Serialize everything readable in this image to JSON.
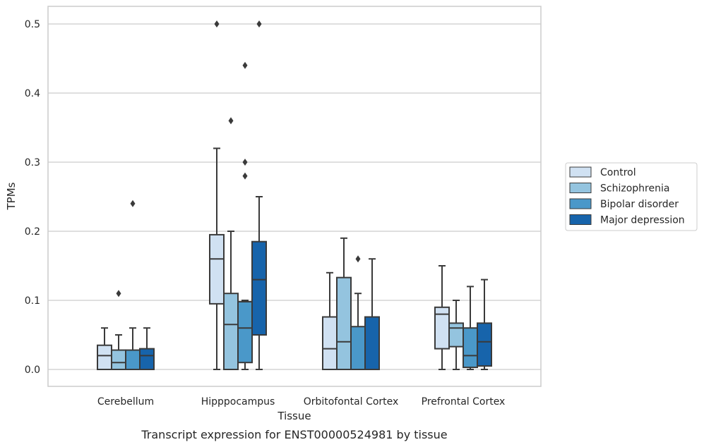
{
  "caption": "Transcript expression for ENST00000524981 by tissue",
  "chart_data": {
    "type": "box",
    "title": "",
    "xlabel": "Tissue",
    "ylabel": "TPMs",
    "ylim": [
      -0.024,
      0.526
    ],
    "yticks": [
      0.0,
      0.1,
      0.2,
      0.3,
      0.4,
      0.5
    ],
    "ytick_labels": [
      "0.0",
      "0.1",
      "0.2",
      "0.3",
      "0.4",
      "0.5"
    ],
    "grid": "horizontal",
    "legend_placement": "right",
    "categories": [
      "Cerebellum",
      "Hipppocampus",
      "Orbitofontal Cortex",
      "Prefrontal Cortex"
    ],
    "series": [
      {
        "name": "Control",
        "color": "#d0e1f2",
        "boxes": [
          {
            "whislo": 0.0,
            "q1": 0.0,
            "med": 0.02,
            "q3": 0.035,
            "whishi": 0.06,
            "fliers": []
          },
          {
            "whislo": 0.0,
            "q1": 0.095,
            "med": 0.16,
            "q3": 0.195,
            "whishi": 0.32,
            "fliers": [
              0.5
            ]
          },
          {
            "whislo": 0.0,
            "q1": 0.0,
            "med": 0.03,
            "q3": 0.076,
            "whishi": 0.14,
            "fliers": []
          },
          {
            "whislo": 0.0,
            "q1": 0.03,
            "med": 0.08,
            "q3": 0.09,
            "whishi": 0.15,
            "fliers": []
          }
        ]
      },
      {
        "name": "Schizophrenia",
        "color": "#94c4df",
        "boxes": [
          {
            "whislo": 0.0,
            "q1": 0.0,
            "med": 0.01,
            "q3": 0.028,
            "whishi": 0.05,
            "fliers": [
              0.11
            ]
          },
          {
            "whislo": 0.0,
            "q1": 0.0,
            "med": 0.065,
            "q3": 0.11,
            "whishi": 0.2,
            "fliers": [
              0.36
            ]
          },
          {
            "whislo": 0.0,
            "q1": 0.0,
            "med": 0.04,
            "q3": 0.133,
            "whishi": 0.19,
            "fliers": []
          },
          {
            "whislo": 0.0,
            "q1": 0.033,
            "med": 0.06,
            "q3": 0.067,
            "whishi": 0.1,
            "fliers": []
          }
        ]
      },
      {
        "name": "Bipolar disorder",
        "color": "#4a98c9",
        "boxes": [
          {
            "whislo": 0.0,
            "q1": 0.0,
            "med": 0.0,
            "q3": 0.028,
            "whishi": 0.06,
            "fliers": [
              0.24
            ]
          },
          {
            "whislo": 0.0,
            "q1": 0.01,
            "med": 0.06,
            "q3": 0.098,
            "whishi": 0.1,
            "fliers": [
              0.28,
              0.3,
              0.44
            ]
          },
          {
            "whislo": 0.0,
            "q1": 0.0,
            "med": 0.0,
            "q3": 0.062,
            "whishi": 0.11,
            "fliers": [
              0.16
            ]
          },
          {
            "whislo": 0.0,
            "q1": 0.003,
            "med": 0.02,
            "q3": 0.06,
            "whishi": 0.12,
            "fliers": []
          }
        ]
      },
      {
        "name": "Major depression",
        "color": "#1764ab",
        "boxes": [
          {
            "whislo": 0.0,
            "q1": 0.0,
            "med": 0.02,
            "q3": 0.03,
            "whishi": 0.06,
            "fliers": []
          },
          {
            "whislo": 0.0,
            "q1": 0.05,
            "med": 0.13,
            "q3": 0.185,
            "whishi": 0.25,
            "fliers": [
              0.5
            ]
          },
          {
            "whislo": 0.0,
            "q1": 0.0,
            "med": 0.0,
            "q3": 0.076,
            "whishi": 0.16,
            "fliers": []
          },
          {
            "whislo": 0.0,
            "q1": 0.005,
            "med": 0.04,
            "q3": 0.067,
            "whishi": 0.13,
            "fliers": []
          }
        ]
      }
    ]
  }
}
